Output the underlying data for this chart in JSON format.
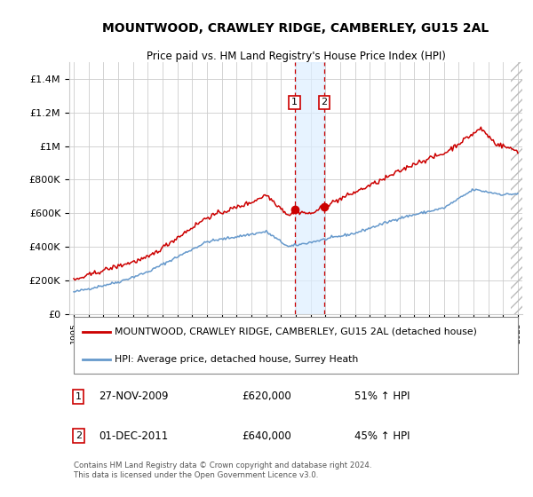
{
  "title": "MOUNTWOOD, CRAWLEY RIDGE, CAMBERLEY, GU15 2AL",
  "subtitle": "Price paid vs. HM Land Registry's House Price Index (HPI)",
  "legend_line1": "MOUNTWOOD, CRAWLEY RIDGE, CAMBERLEY, GU15 2AL (detached house)",
  "legend_line2": "HPI: Average price, detached house, Surrey Heath",
  "annotation1_label": "1",
  "annotation1_date": "27-NOV-2009",
  "annotation1_price": "£620,000",
  "annotation1_hpi": "51% ↑ HPI",
  "annotation1_year": 2009.92,
  "annotation1_value": 620000,
  "annotation2_label": "2",
  "annotation2_date": "01-DEC-2011",
  "annotation2_price": "£640,000",
  "annotation2_hpi": "45% ↑ HPI",
  "annotation2_year": 2011.92,
  "annotation2_value": 640000,
  "red_color": "#cc0000",
  "blue_color": "#6699cc",
  "background_color": "#ffffff",
  "grid_color": "#cccccc",
  "footer_text": "Contains HM Land Registry data © Crown copyright and database right 2024.\nThis data is licensed under the Open Government Licence v3.0.",
  "ylim": [
    0,
    1500000
  ],
  "yticks": [
    0,
    200000,
    400000,
    600000,
    800000,
    1000000,
    1200000,
    1400000
  ],
  "ytick_labels": [
    "£0",
    "£200K",
    "£400K",
    "£600K",
    "£800K",
    "£1M",
    "£1.2M",
    "£1.4M"
  ],
  "shade_color": "#ddeeff",
  "hatch_start": 2024.5,
  "xlim_left": 1994.7,
  "xlim_right": 2025.3
}
